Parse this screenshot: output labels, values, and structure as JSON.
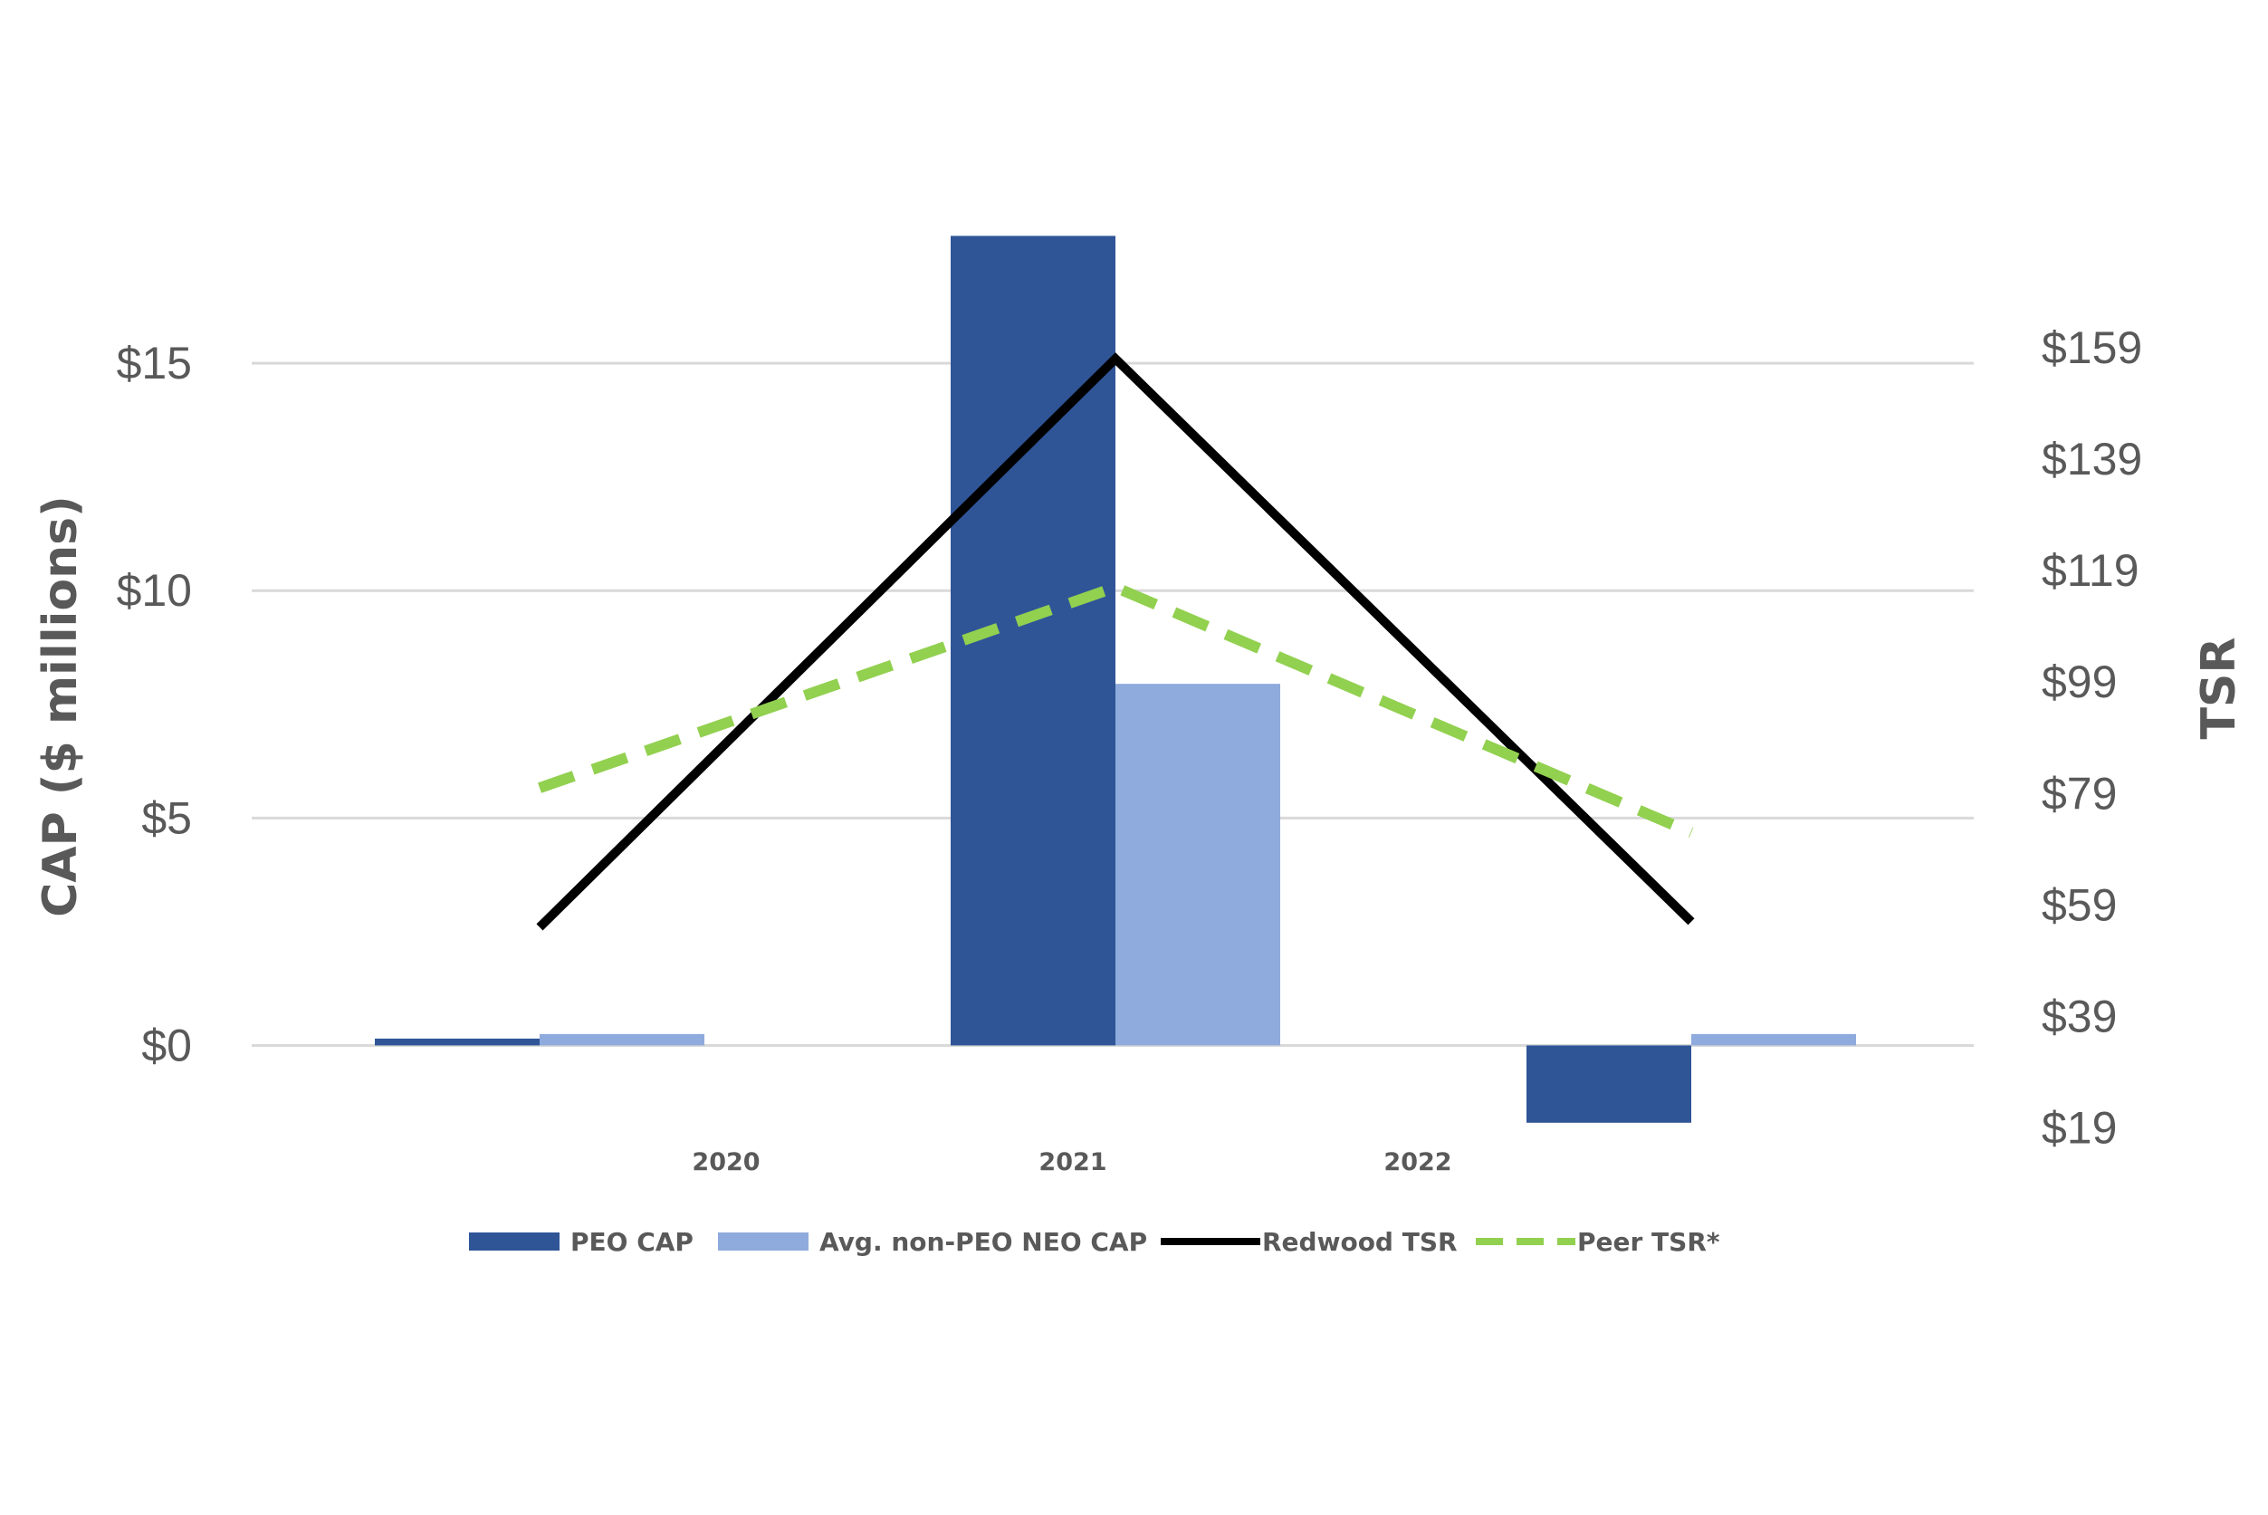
{
  "chart_data": {
    "type": "bar+line",
    "categories": [
      "2020",
      "2021",
      "2022"
    ],
    "left_axis": {
      "label": "CAP ($ millions)",
      "range": [
        -2.5,
        20
      ],
      "ticks": [
        0,
        5,
        10,
        15
      ],
      "tick_labels": [
        "$0",
        "$5",
        "$10",
        "$15"
      ]
    },
    "right_axis": {
      "label": "TSR",
      "range": [
        13.4,
        197
      ],
      "ticks": [
        19,
        39,
        59,
        79,
        99,
        119,
        139,
        159
      ],
      "tick_labels": [
        "$19",
        "$39",
        "$59",
        "$79",
        "$99",
        "$119",
        "$139",
        "$159"
      ]
    },
    "bar_series": [
      {
        "name": "PEO CAP",
        "color": "#2F5597",
        "values": [
          0.15,
          17.8,
          -1.7
        ]
      },
      {
        "name": "Avg. non-PEO NEO CAP",
        "color": "#8FAADC",
        "values": [
          0.25,
          7.95,
          0.25
        ]
      }
    ],
    "line_series": [
      {
        "name": "Redwood TSR",
        "color": "#000000",
        "style": "solid",
        "values": [
          55,
          157,
          56
        ]
      },
      {
        "name": "Peer TSR*",
        "color": "#92D050",
        "style": "dashed",
        "values": [
          80,
          116,
          72
        ]
      }
    ],
    "grid": true,
    "legend_position": "bottom"
  }
}
